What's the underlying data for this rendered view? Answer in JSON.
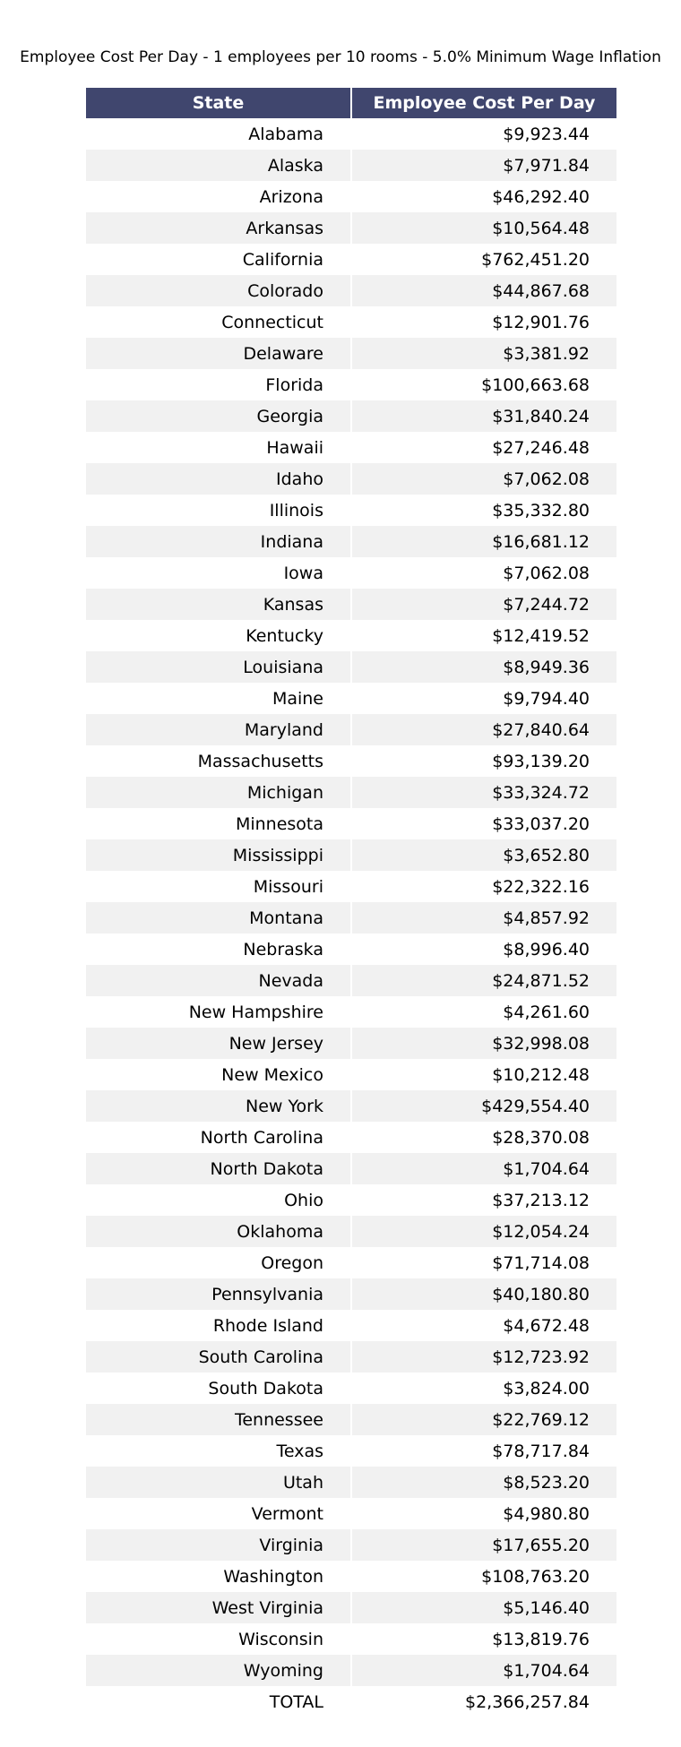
{
  "chart_data": {
    "type": "table",
    "title": "Employee Cost Per Day - 1 employees per 10 rooms - 5.0% Minimum Wage Inflation",
    "columns": [
      "State",
      "Employee Cost Per Day"
    ],
    "rows": [
      [
        "Alabama",
        "$9,923.44"
      ],
      [
        "Alaska",
        "$7,971.84"
      ],
      [
        "Arizona",
        "$46,292.40"
      ],
      [
        "Arkansas",
        "$10,564.48"
      ],
      [
        "California",
        "$762,451.20"
      ],
      [
        "Colorado",
        "$44,867.68"
      ],
      [
        "Connecticut",
        "$12,901.76"
      ],
      [
        "Delaware",
        "$3,381.92"
      ],
      [
        "Florida",
        "$100,663.68"
      ],
      [
        "Georgia",
        "$31,840.24"
      ],
      [
        "Hawaii",
        "$27,246.48"
      ],
      [
        "Idaho",
        "$7,062.08"
      ],
      [
        "Illinois",
        "$35,332.80"
      ],
      [
        "Indiana",
        "$16,681.12"
      ],
      [
        "Iowa",
        "$7,062.08"
      ],
      [
        "Kansas",
        "$7,244.72"
      ],
      [
        "Kentucky",
        "$12,419.52"
      ],
      [
        "Louisiana",
        "$8,949.36"
      ],
      [
        "Maine",
        "$9,794.40"
      ],
      [
        "Maryland",
        "$27,840.64"
      ],
      [
        "Massachusetts",
        "$93,139.20"
      ],
      [
        "Michigan",
        "$33,324.72"
      ],
      [
        "Minnesota",
        "$33,037.20"
      ],
      [
        "Mississippi",
        "$3,652.80"
      ],
      [
        "Missouri",
        "$22,322.16"
      ],
      [
        "Montana",
        "$4,857.92"
      ],
      [
        "Nebraska",
        "$8,996.40"
      ],
      [
        "Nevada",
        "$24,871.52"
      ],
      [
        "New Hampshire",
        "$4,261.60"
      ],
      [
        "New Jersey",
        "$32,998.08"
      ],
      [
        "New Mexico",
        "$10,212.48"
      ],
      [
        "New York",
        "$429,554.40"
      ],
      [
        "North Carolina",
        "$28,370.08"
      ],
      [
        "North Dakota",
        "$1,704.64"
      ],
      [
        "Ohio",
        "$37,213.12"
      ],
      [
        "Oklahoma",
        "$12,054.24"
      ],
      [
        "Oregon",
        "$71,714.08"
      ],
      [
        "Pennsylvania",
        "$40,180.80"
      ],
      [
        "Rhode Island",
        "$4,672.48"
      ],
      [
        "South Carolina",
        "$12,723.92"
      ],
      [
        "South Dakota",
        "$3,824.00"
      ],
      [
        "Tennessee",
        "$22,769.12"
      ],
      [
        "Texas",
        "$78,717.84"
      ],
      [
        "Utah",
        "$8,523.20"
      ],
      [
        "Vermont",
        "$4,980.80"
      ],
      [
        "Virginia",
        "$17,655.20"
      ],
      [
        "Washington",
        "$108,763.20"
      ],
      [
        "West Virginia",
        "$5,146.40"
      ],
      [
        "Wisconsin",
        "$13,819.76"
      ],
      [
        "Wyoming",
        "$1,704.64"
      ],
      [
        "TOTAL",
        "$2,366,257.84"
      ]
    ],
    "colors": {
      "header_bg": "#40466e",
      "header_text": "#ffffff",
      "stripe_bg": "#f1f1f1",
      "row_bg": "#ffffff"
    }
  }
}
